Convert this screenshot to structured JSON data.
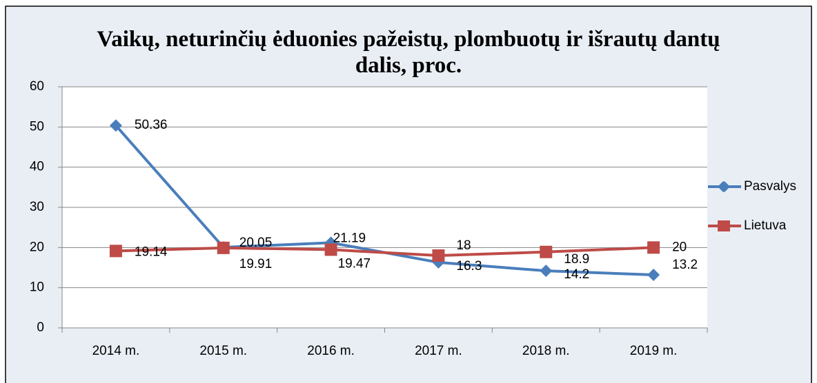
{
  "chart_data": {
    "type": "line",
    "title": "Vaikų, neturinčių ėduonies pažeistų, plombuotų ir išrautų dantų dalis, proc.",
    "categories": [
      "2014 m.",
      "2015 m.",
      "2016 m.",
      "2017 m.",
      "2018 m.",
      "2019 m."
    ],
    "series": [
      {
        "name": "Pasvalys",
        "color": "#4a7ebb",
        "values": [
          50.36,
          20.05,
          21.19,
          16.3,
          14.2,
          13.2
        ]
      },
      {
        "name": "Lietuva",
        "color": "#be4b48",
        "values": [
          19.14,
          19.91,
          19.47,
          18,
          18.9,
          20
        ]
      }
    ],
    "ylim": [
      0,
      60
    ],
    "yticks": [
      0,
      10,
      20,
      30,
      40,
      50,
      60
    ],
    "grid": true,
    "legend": "right"
  }
}
